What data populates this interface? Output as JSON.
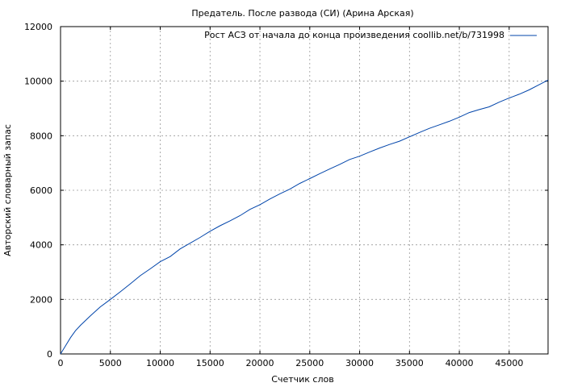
{
  "chart_data": {
    "type": "line",
    "title": "Предатель. После развода (СИ) (Арина Арская)",
    "xlabel": "Счетчик слов",
    "ylabel": "Авторский словарный запас",
    "xlim": [
      0,
      48900
    ],
    "ylim": [
      0,
      12000
    ],
    "x_ticks": [
      0,
      5000,
      10000,
      15000,
      20000,
      25000,
      30000,
      35000,
      40000,
      45000
    ],
    "y_ticks": [
      0,
      2000,
      4000,
      6000,
      8000,
      10000,
      12000
    ],
    "grid": true,
    "legend_position": "top-right",
    "series": [
      {
        "name": "Рост АСЗ от начала до конца произведения coollib.net/b/731998",
        "color": "#0044aa",
        "x": [
          0,
          500,
          1000,
          1500,
          2000,
          3000,
          4000,
          5000,
          6000,
          7000,
          8000,
          9000,
          10000,
          11000,
          12000,
          13000,
          14000,
          15000,
          16000,
          17000,
          18000,
          19000,
          20000,
          21000,
          22000,
          23000,
          24000,
          25000,
          26000,
          27000,
          28000,
          29000,
          30000,
          31000,
          32000,
          33000,
          34000,
          35000,
          36000,
          37000,
          38000,
          39000,
          40000,
          41000,
          42000,
          43000,
          44000,
          45000,
          46000,
          47000,
          48000,
          48900
        ],
        "y": [
          0,
          300,
          600,
          850,
          1050,
          1400,
          1730,
          2000,
          2280,
          2570,
          2870,
          3120,
          3380,
          3570,
          3850,
          4060,
          4270,
          4500,
          4700,
          4880,
          5070,
          5300,
          5470,
          5680,
          5870,
          6040,
          6250,
          6430,
          6610,
          6780,
          6950,
          7130,
          7250,
          7400,
          7550,
          7680,
          7800,
          7960,
          8120,
          8270,
          8400,
          8530,
          8680,
          8850,
          8960,
          9060,
          9230,
          9380,
          9520,
          9680,
          9870,
          10040
        ]
      }
    ]
  }
}
